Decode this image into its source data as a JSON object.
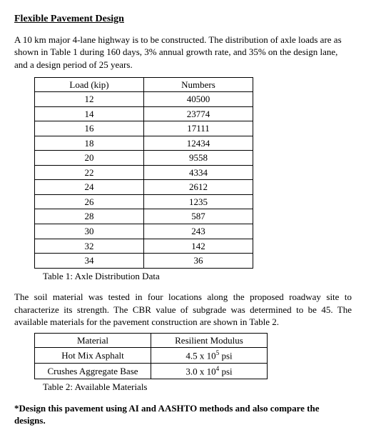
{
  "title": "Flexible Pavement Design",
  "intro": "A 10 km major 4-lane highway is to be constructed. The distribution of axle loads are as shown in Table 1 during 160 days, 3% annual growth rate, and 35% on the design lane, and a design period of 25 years.",
  "table1": {
    "headers": [
      "Load (kip)",
      "Numbers"
    ],
    "rows": [
      [
        "12",
        "40500"
      ],
      [
        "14",
        "23774"
      ],
      [
        "16",
        "17111"
      ],
      [
        "18",
        "12434"
      ],
      [
        "20",
        "9558"
      ],
      [
        "22",
        "4334"
      ],
      [
        "24",
        "2612"
      ],
      [
        "26",
        "1235"
      ],
      [
        "28",
        "587"
      ],
      [
        "30",
        "243"
      ],
      [
        "32",
        "142"
      ],
      [
        "34",
        "36"
      ]
    ],
    "caption": "Table 1: Axle Distribution Data",
    "col_widths": [
      "140px",
      "140px"
    ]
  },
  "middle_para": "The soil material was tested in four locations along the proposed roadway site to characterize its strength. The CBR value of subgrade was determined to be 45. The available materials for the pavement construction are shown in Table 2.",
  "table2": {
    "headers": [
      "Material",
      "Resilient Modulus"
    ],
    "rows_html": [
      [
        "Hot Mix Asphalt",
        "4.5 x 10<sup>5</sup> psi"
      ],
      [
        "Crushes Aggregate Base",
        "3.0 x 10<sup>4</sup> psi"
      ]
    ],
    "caption": "Table 2: Available Materials",
    "col_widths": [
      "150px",
      "150px"
    ]
  },
  "footer": "*Design this pavement using AI and AASHTO methods and also compare the designs."
}
